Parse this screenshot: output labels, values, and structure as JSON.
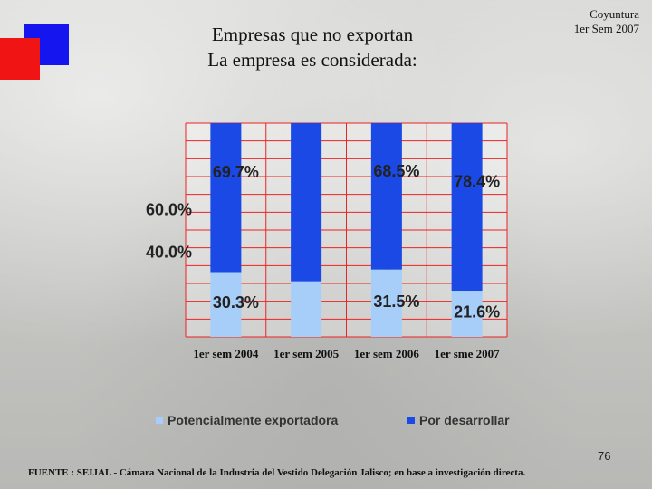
{
  "header": {
    "title_line1": "Empresas que no exportan",
    "title_line2": "La empresa es considerada:",
    "corner_line1": "Coyuntura",
    "corner_line2": "1er Sem 2007"
  },
  "colors": {
    "series_light": "#a6cef8",
    "series_dark": "#1a49e6",
    "grid": "#ee2222",
    "accent_blue": "#1515f0",
    "accent_red": "#f01414"
  },
  "chart_data": {
    "type": "bar",
    "stacked": true,
    "categories": [
      "1er sem 2004",
      "1er sem 2005",
      "1er sem 2006",
      "1er sme 2007"
    ],
    "series": [
      {
        "name": "Potencialmente exportadora",
        "values": [
          30.3,
          26.0,
          31.5,
          21.6
        ]
      },
      {
        "name": "Por desarrollar",
        "values": [
          69.7,
          74.0,
          68.5,
          78.4
        ]
      }
    ],
    "data_labels": {
      "Potencialmente exportadora": [
        "30.3%",
        "",
        "31.5%",
        "21.6%"
      ],
      "Por desarrollar": [
        "69.7%",
        "",
        "68.5%",
        "78.4%"
      ]
    },
    "y_tick_labels": [
      {
        "value": 60,
        "label": "60.0%"
      },
      {
        "value": 40,
        "label": "40.0%"
      }
    ],
    "ylim": [
      0,
      100
    ],
    "grid": true,
    "legend_position": "bottom"
  },
  "footer": {
    "page_number": "76",
    "source": "FUENTE : SEIJAL - Cámara Nacional de la Industria del Vestido Delegación Jalisco; en base a investigación directa."
  }
}
